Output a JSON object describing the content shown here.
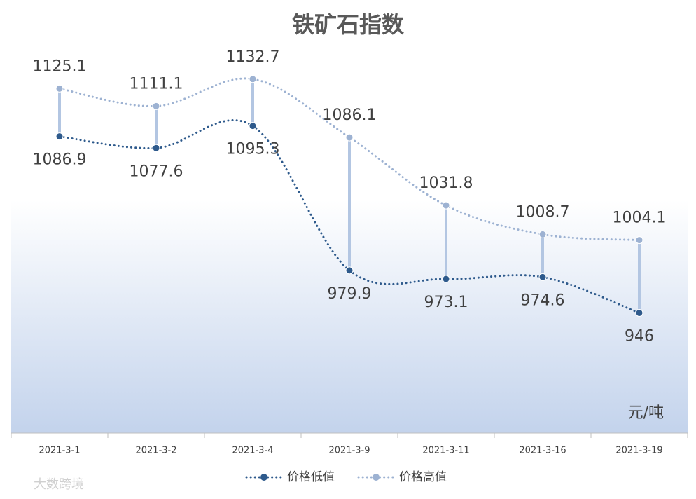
{
  "chart_data": {
    "type": "line",
    "title": "铁矿石指数",
    "categories": [
      "2021-3-1",
      "2021-3-2",
      "2021-3-4",
      "2021-3-9",
      "2021-3-11",
      "2021-3-16",
      "2021-3-19"
    ],
    "series": [
      {
        "name": "价格低值",
        "color": "#2e5a8c",
        "values": [
          1086.9,
          1077.6,
          1095.3,
          979.9,
          973.1,
          974.6,
          946
        ]
      },
      {
        "name": "价格高值",
        "color": "#9db2d2",
        "values": [
          1125.1,
          1111.1,
          1132.7,
          1086.1,
          1031.8,
          1008.7,
          1004.1
        ]
      }
    ],
    "ylim": [
      850,
      1160
    ],
    "unit_label": "元/吨",
    "watermark": "大数跨境"
  }
}
